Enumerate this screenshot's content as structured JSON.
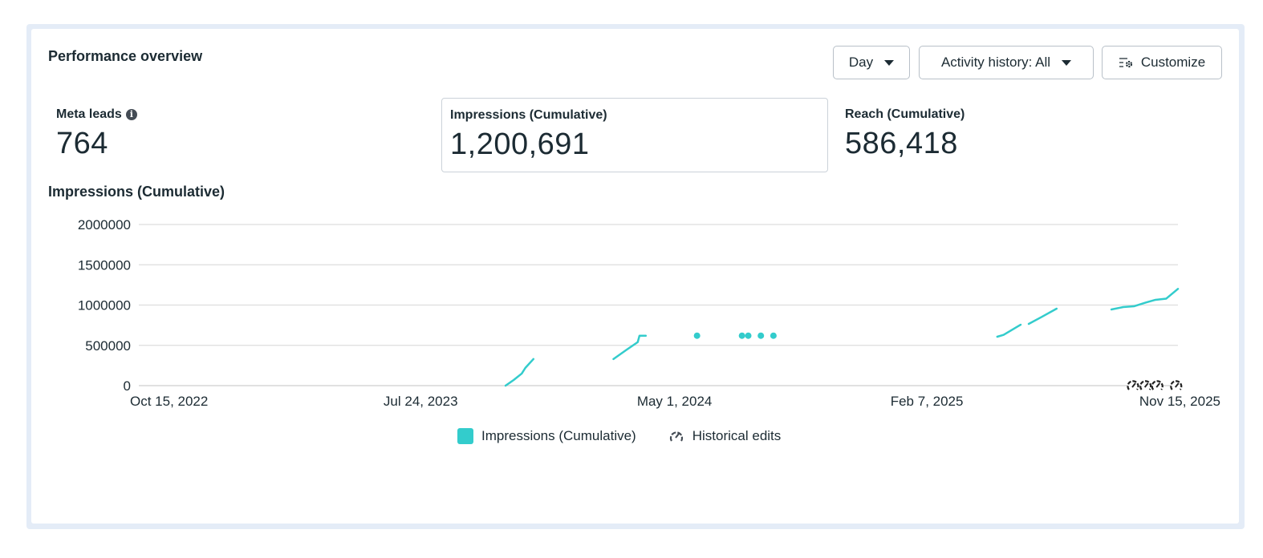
{
  "header": {
    "title": "Performance overview"
  },
  "controls": {
    "day_label": "Day",
    "activity_label": "Activity history: All",
    "customize_label": "Customize"
  },
  "metrics": [
    {
      "label": "Meta leads",
      "value": "764",
      "info": "i",
      "selected": false
    },
    {
      "label": "Impressions (Cumulative)",
      "value": "1,200,691",
      "selected": true
    },
    {
      "label": "Reach (Cumulative)",
      "value": "586,418",
      "selected": false
    }
  ],
  "colors": {
    "series": "#33cccc",
    "grid": "#dddddd",
    "text": "#1c2b33"
  },
  "chart_data": {
    "type": "line",
    "title": "Impressions (Cumulative)",
    "ylim": [
      0,
      2000000
    ],
    "yticks": [
      "0",
      "500000",
      "1000000",
      "1500000",
      "2000000"
    ],
    "xlim": [
      "2022-10-15",
      "2025-12-14"
    ],
    "xticks": [
      {
        "date": "2022-10-15",
        "label": "Oct 15, 2022"
      },
      {
        "date": "2023-07-24",
        "label": "Jul 24, 2023"
      },
      {
        "date": "2024-05-01",
        "label": "May 1, 2024"
      },
      {
        "date": "2025-02-07",
        "label": "Feb 7, 2025"
      },
      {
        "date": "2025-11-15",
        "label": "Nov 15, 2025"
      }
    ],
    "grid": true,
    "series": [
      {
        "name": "Impressions (Cumulative)",
        "segments": [
          [
            [
              "2023-11-27",
              0
            ],
            [
              "2023-12-06",
              70000
            ],
            [
              "2023-12-15",
              150000
            ],
            [
              "2023-12-19",
              220000
            ],
            [
              "2023-12-28",
              330000
            ]
          ],
          [
            [
              "2024-03-26",
              330000
            ],
            [
              "2024-04-09",
              440000
            ],
            [
              "2024-04-22",
              540000
            ],
            [
              "2024-04-24",
              620000
            ],
            [
              "2024-05-01",
              620000
            ]
          ],
          [
            [
              "2024-06-27",
              620000
            ]
          ],
          [
            [
              "2024-08-16",
              620000
            ]
          ],
          [
            [
              "2024-08-23",
              620000
            ]
          ],
          [
            [
              "2024-09-06",
              620000
            ]
          ],
          [
            [
              "2024-09-20",
              620000
            ]
          ],
          [
            [
              "2025-05-27",
              607000
            ],
            [
              "2025-06-03",
              630000
            ],
            [
              "2025-06-12",
              690000
            ],
            [
              "2025-06-22",
              756000
            ]
          ],
          [
            [
              "2025-07-01",
              766000
            ],
            [
              "2025-07-15",
              850000
            ],
            [
              "2025-08-01",
              955000
            ]
          ],
          [
            [
              "2025-10-01",
              945000
            ],
            [
              "2025-10-14",
              975000
            ],
            [
              "2025-10-26",
              985000
            ],
            [
              "2025-11-08",
              1030000
            ],
            [
              "2025-11-19",
              1065000
            ],
            [
              "2025-12-01",
              1080000
            ],
            [
              "2025-12-14",
              1200691
            ]
          ]
        ]
      }
    ],
    "historical_edits": [
      "2025-10-25",
      "2025-11-08",
      "2025-11-21",
      "2025-12-12"
    ],
    "legend": {
      "placement": "bottom",
      "items": [
        "Impressions (Cumulative)",
        "Historical edits"
      ]
    }
  }
}
